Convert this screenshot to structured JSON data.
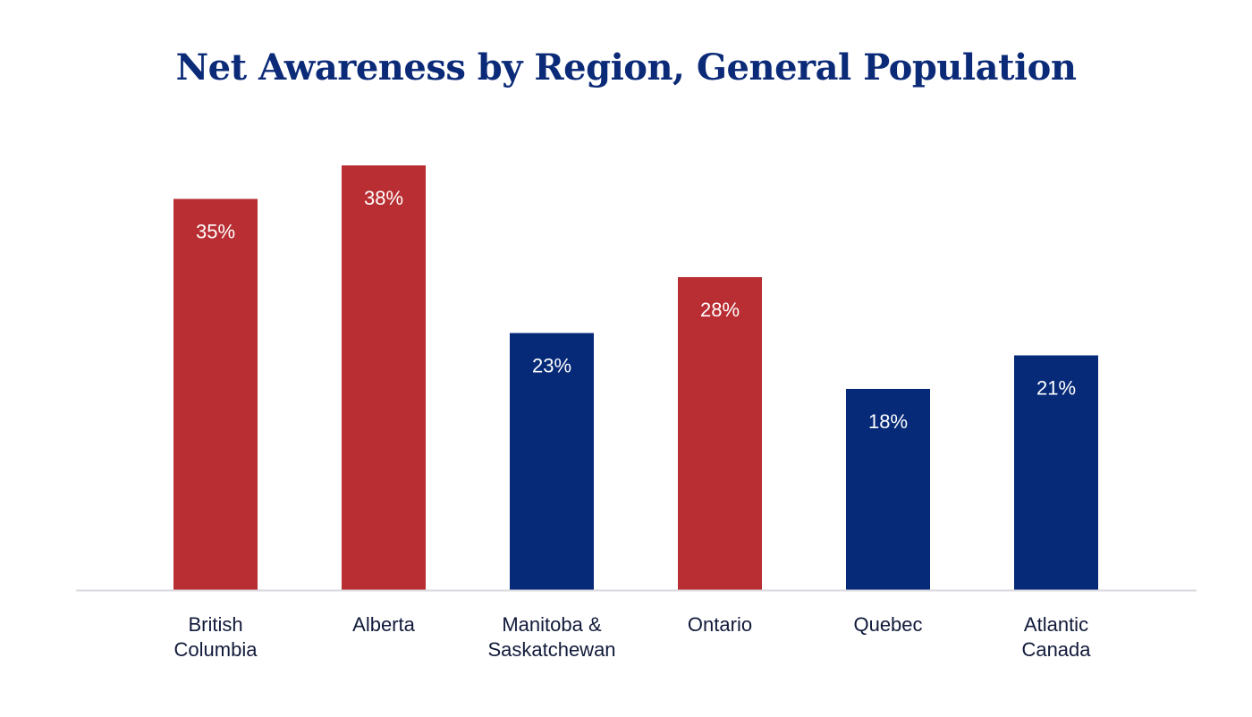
{
  "colors": {
    "title": "#0b2a78",
    "red": "#b82e32",
    "blue": "#062a78",
    "axis": "#d9d9de",
    "label": "#111a3a"
  },
  "chart_data": {
    "type": "bar",
    "title": "Net Awareness by Region, General Population",
    "xlabel": "",
    "ylabel": "",
    "ylim": [
      0,
      40
    ],
    "grid": false,
    "categories": [
      [
        "British",
        "Columbia"
      ],
      [
        "Alberta"
      ],
      [
        "Manitoba &",
        "Saskatchewan"
      ],
      [
        "Ontario"
      ],
      [
        "Quebec"
      ],
      [
        "Atlantic",
        "Canada"
      ]
    ],
    "values": [
      35,
      38,
      23,
      28,
      18,
      21
    ],
    "data_labels": [
      "35%",
      "38%",
      "23%",
      "28%",
      "18%",
      "21%"
    ],
    "bar_colors": [
      "red",
      "red",
      "blue",
      "red",
      "blue",
      "blue"
    ]
  }
}
